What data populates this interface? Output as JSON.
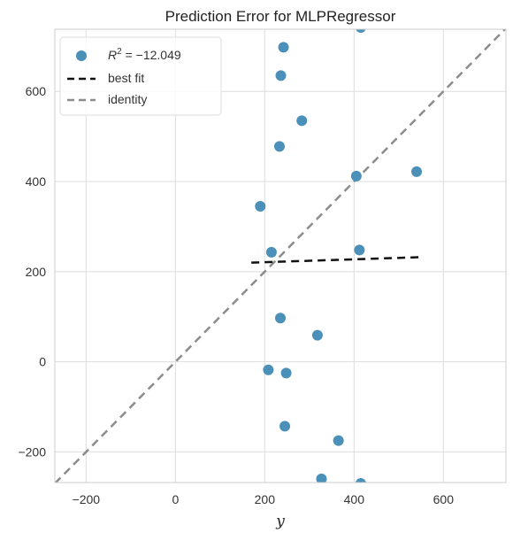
{
  "chart_data": {
    "type": "scatter",
    "title": "Prediction Error for MLPRegressor",
    "xlabel": "y",
    "ylabel": "",
    "xlim": [
      -270,
      740
    ],
    "ylim": [
      -268,
      738
    ],
    "xticks": [
      -200,
      0,
      200,
      400,
      600
    ],
    "yticks": [
      -200,
      0,
      200,
      400,
      600
    ],
    "grid": true,
    "legend_position": "top-left",
    "colors": {
      "points": "#4A90B8",
      "best_fit": "#111111",
      "identity": "#8C8C8C",
      "grid": "#DDDDDD",
      "frame": "#CCCCCC"
    },
    "series": [
      {
        "name": "R² = −12.049",
        "kind": "points",
        "x": [
          415,
          242,
          236,
          283,
          233,
          540,
          405,
          190,
          215,
          412,
          235,
          318,
          208,
          248,
          245,
          365,
          327,
          415
        ],
        "y": [
          742,
          698,
          635,
          535,
          478,
          422,
          412,
          345,
          243,
          248,
          97,
          59,
          -18,
          -25,
          -143,
          -175,
          -260,
          -270
        ]
      },
      {
        "name": "best fit",
        "kind": "line",
        "style": "dashed",
        "x": [
          170,
          545
        ],
        "y": [
          220,
          232
        ]
      },
      {
        "name": "identity",
        "kind": "line",
        "style": "dashed",
        "x": [
          -270,
          740
        ],
        "y": [
          -270,
          740
        ]
      }
    ],
    "legend": [
      {
        "kind": "marker",
        "label_prefix": "R",
        "label_sup": "2",
        "label_suffix": " = −12.049"
      },
      {
        "kind": "dashline",
        "label": "best fit"
      },
      {
        "kind": "dashline",
        "label": "identity"
      }
    ]
  }
}
